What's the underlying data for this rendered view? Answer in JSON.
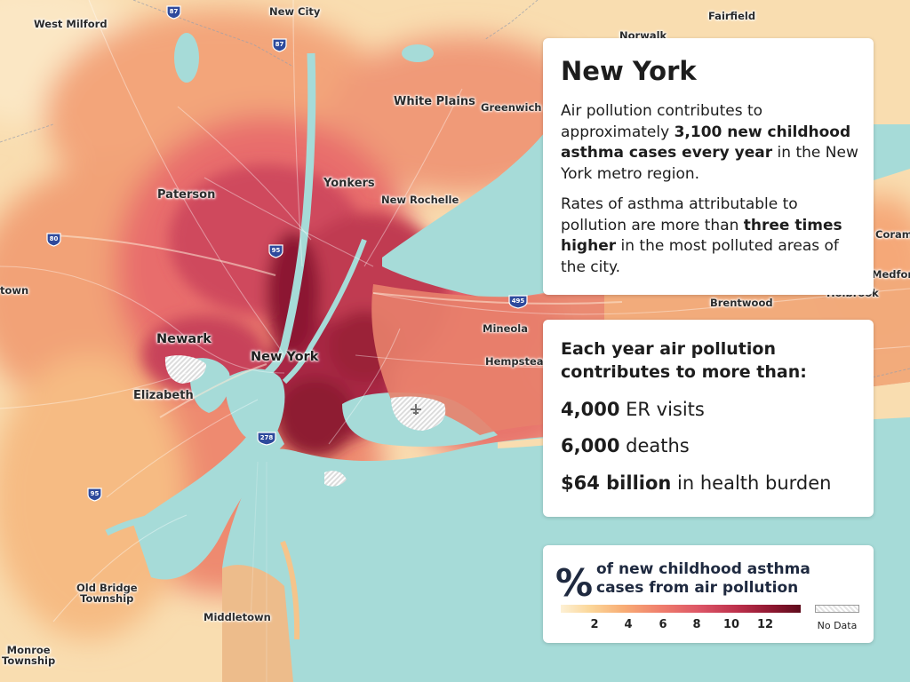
{
  "map": {
    "places": [
      {
        "name": "West Milford"
      },
      {
        "name": "New City"
      },
      {
        "name": "Fairfield"
      },
      {
        "name": "Norwalk"
      },
      {
        "name": "White Plains"
      },
      {
        "name": "Greenwich"
      },
      {
        "name": "Yonkers"
      },
      {
        "name": "New Rochelle"
      },
      {
        "name": "Paterson"
      },
      {
        "name": "Newark"
      },
      {
        "name": "New York"
      },
      {
        "name": "Elizabeth"
      },
      {
        "name": "Mineola"
      },
      {
        "name": "Hempstead"
      },
      {
        "name": "Brentwood"
      },
      {
        "name": "Coram"
      },
      {
        "name": "Medford"
      },
      {
        "name": "Holbrook"
      },
      {
        "name": "Old Bridge\nTownship"
      },
      {
        "name": "Middletown"
      },
      {
        "name": "Monroe\nTownship"
      },
      {
        "name": "town"
      }
    ],
    "highways": [
      "87",
      "87",
      "80",
      "95",
      "495",
      "278",
      "95"
    ],
    "colors": {
      "water": "#a6dbd8",
      "low": "#fbd79a",
      "mid": "#ef7d6c",
      "high": "#bb2f4a",
      "peak": "#6e0e22"
    }
  },
  "info_card": {
    "title": "New York",
    "p1_a": "Air pollution contributes to approximately ",
    "p1_b": "3,100 new childhood asthma cases every year",
    "p1_c": " in the New York metro region.",
    "p2_a": "Rates of asthma attributable to pollution are more than ",
    "p2_b": "three times higher",
    "p2_c": " in the most polluted areas of the city."
  },
  "stats_card": {
    "heading": "Each year air pollution contributes to more than:",
    "stats": [
      {
        "value": "4,000",
        "label": " ER visits"
      },
      {
        "value": "6,000",
        "label": " deaths"
      },
      {
        "value": "$64 billion",
        "label": " in health burden"
      }
    ]
  },
  "legend": {
    "symbol": "%",
    "description": "of new childhood asthma cases from air pollution",
    "ticks": [
      "2",
      "4",
      "6",
      "8",
      "10",
      "12"
    ],
    "no_data": "No Data"
  }
}
